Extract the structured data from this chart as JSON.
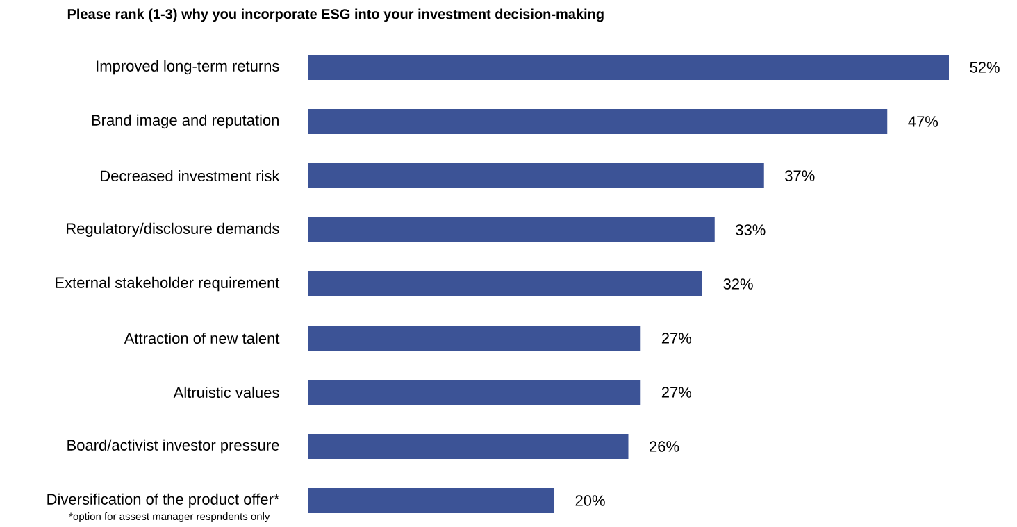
{
  "chart_data": {
    "type": "bar",
    "orientation": "horizontal",
    "title": "Please rank (1-3) why you incorporate ESG into your investment decision-making",
    "categories": [
      "Improved long-term returns",
      "Brand image and reputation",
      "Decreased investment risk",
      "Regulatory/disclosure demands",
      "External stakeholder requirement",
      "Attraction of new talent",
      "Altruistic values",
      "Board/activist investor pressure",
      "Diversification of the product offer*"
    ],
    "values": [
      52,
      47,
      37,
      33,
      32,
      27,
      27,
      26,
      20
    ],
    "value_labels": [
      "52%",
      "47%",
      "37%",
      "33%",
      "32%",
      "27%",
      "27%",
      "26%",
      "20%"
    ],
    "color": "#3c5396",
    "annotations": [
      "*option for assest manager respndents only"
    ]
  }
}
